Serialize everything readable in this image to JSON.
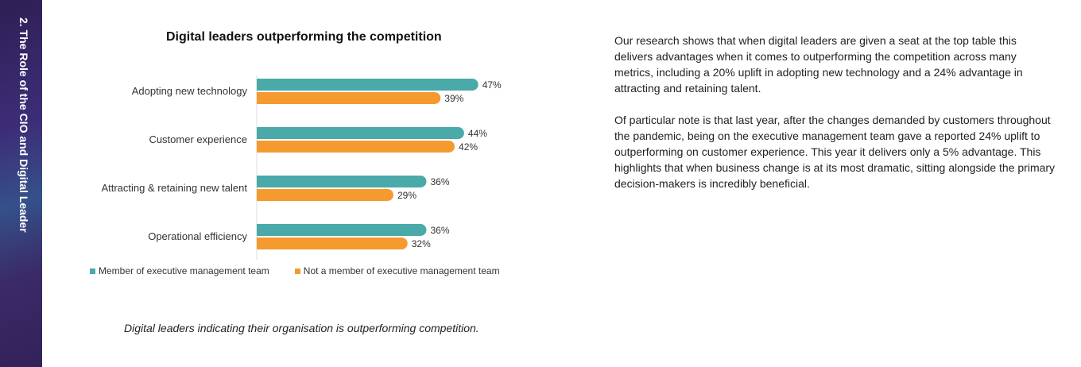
{
  "sidebar": {
    "title": "2. The Role of the CIO and Digital Leader"
  },
  "chart_data": {
    "type": "bar",
    "orientation": "horizontal",
    "title": "Digital leaders outperforming the competition",
    "categories": [
      "Adopting new technology",
      "Customer experience",
      "Attracting & retaining new talent",
      "Operational efficiency"
    ],
    "series": [
      {
        "name": "Member of executive management team",
        "color": "#4aa9a9",
        "values": [
          47,
          44,
          36,
          36
        ]
      },
      {
        "name": "Not a member of executive management team",
        "color": "#f59a2f",
        "values": [
          39,
          42,
          29,
          32
        ]
      }
    ],
    "value_suffix": "%",
    "legend": "bottom"
  },
  "caption": "Digital leaders indicating their organisation is outperforming competition.",
  "text": {
    "p1": "Our research shows that when digital leaders are given a seat at the top table this delivers advantages when it comes to outperforming the competition across many metrics, including a 20% uplift in adopting new technology and a 24% advantage in attracting and retaining talent.",
    "p2": "Of particular note is that last year, after the changes demanded by customers throughout the pandemic, being on the executive management team gave a reported 24% uplift to outperforming on customer experience. This year it delivers only a 5% advantage. This highlights that when business change is at its most dramatic, sitting alongside the primary decision-makers is incredibly beneficial."
  }
}
